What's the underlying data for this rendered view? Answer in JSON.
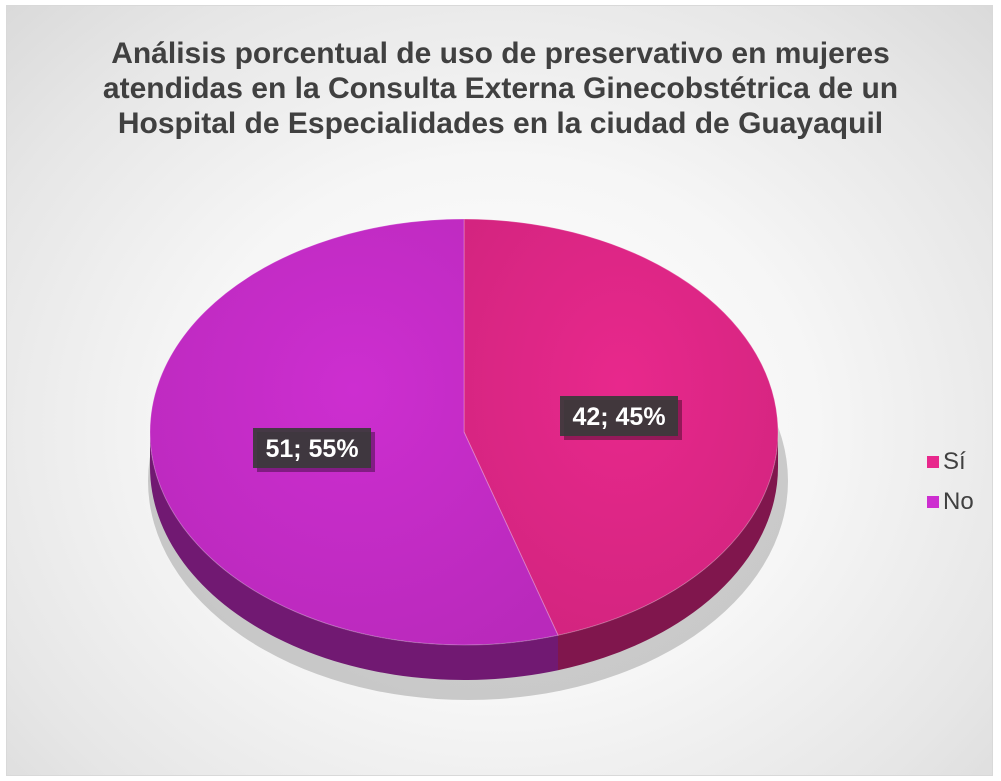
{
  "chart_data": {
    "type": "pie",
    "title": "Análisis porcentual de uso de preservativo en mujeres atendidas en la Consulta Externa Ginecobstétrica de un Hospital de Especialidades en la ciudad de Guayaquil",
    "categories": [
      "Sí",
      "No"
    ],
    "values": [
      42,
      51
    ],
    "percentages": [
      45,
      55
    ],
    "data_labels": [
      "42; 45%",
      "51; 55%"
    ],
    "colors": [
      "#e8288c",
      "#cd2ed0"
    ],
    "style": "3d",
    "legend_position": "right"
  }
}
